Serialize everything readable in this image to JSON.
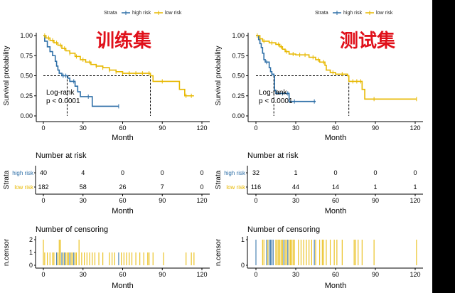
{
  "colors": {
    "high": "#2E6FA7",
    "low": "#E7B800",
    "title": "#E0101A"
  },
  "legend": {
    "title": "Strata",
    "items": [
      "high risk",
      "low risk"
    ]
  },
  "chart_data": [
    {
      "type": "line",
      "panel": "km",
      "title": "训练集",
      "ylabel": "Survival probability",
      "xlabel": "Month",
      "xticks": [
        0,
        30,
        60,
        90,
        120
      ],
      "yticks": [
        "0.00",
        "0.25",
        "0.50",
        "0.75",
        "1.00"
      ],
      "xlim": [
        0,
        120
      ],
      "ylim": [
        0,
        1
      ],
      "annotation": [
        "Log-rank",
        "p < 0.0001"
      ],
      "medians": [
        18,
        81
      ],
      "series": [
        {
          "name": "high risk",
          "steps": [
            [
              0,
              1
            ],
            [
              1,
              0.93
            ],
            [
              3,
              0.86
            ],
            [
              5,
              0.8
            ],
            [
              7,
              0.75
            ],
            [
              9,
              0.68
            ],
            [
              10,
              0.62
            ],
            [
              11,
              0.57
            ],
            [
              12,
              0.53
            ],
            [
              14,
              0.5
            ],
            [
              18.5,
              0.47
            ],
            [
              20,
              0.43
            ],
            [
              24,
              0.37
            ],
            [
              26,
              0.3
            ],
            [
              28,
              0.24
            ],
            [
              37,
              0.12
            ],
            [
              57,
              0.12
            ]
          ],
          "censor": [
            15,
            17,
            23,
            34,
            57
          ]
        },
        {
          "name": "low risk",
          "steps": [
            [
              0,
              1
            ],
            [
              2,
              0.97
            ],
            [
              5,
              0.94
            ],
            [
              8,
              0.91
            ],
            [
              11,
              0.88
            ],
            [
              14,
              0.84
            ],
            [
              17,
              0.81
            ],
            [
              20,
              0.78
            ],
            [
              24,
              0.74
            ],
            [
              28,
              0.7
            ],
            [
              32,
              0.67
            ],
            [
              36,
              0.64
            ],
            [
              40,
              0.62
            ],
            [
              45,
              0.6
            ],
            [
              50,
              0.57
            ],
            [
              55,
              0.55
            ],
            [
              60,
              0.53
            ],
            [
              81,
              0.5
            ],
            [
              83,
              0.43
            ],
            [
              103,
              0.33
            ],
            [
              107,
              0.25
            ],
            [
              114,
              0.25
            ]
          ],
          "censor": [
            1,
            4,
            7,
            10,
            13,
            16,
            20,
            25,
            30,
            35,
            40,
            45,
            50,
            55,
            60,
            65,
            70,
            75,
            80,
            90,
            108,
            112
          ]
        }
      ],
      "risk_table": {
        "title": "Number at risk",
        "ylabel": "Strata",
        "xlabel": "Month",
        "rows": [
          {
            "label": "high risk",
            "values": [
              "40",
              "4",
              "0",
              "0",
              "0"
            ]
          },
          {
            "label": "low risk",
            "values": [
              "182",
              "58",
              "26",
              "7",
              "0"
            ]
          }
        ]
      },
      "censoring": {
        "title": "Number of censoring",
        "ylabel": "n.censor",
        "xlabel": "Month",
        "yticks": [
          "0",
          "1",
          "2"
        ],
        "ymax": 2,
        "bars": [
          [
            0,
            2,
            "low"
          ],
          [
            1,
            1,
            "low"
          ],
          [
            3,
            1,
            "low"
          ],
          [
            5,
            1,
            "low"
          ],
          [
            7,
            1,
            "low"
          ],
          [
            8,
            1,
            "low"
          ],
          [
            10,
            1,
            "high"
          ],
          [
            11,
            1,
            "low"
          ],
          [
            12,
            2,
            "low"
          ],
          [
            13,
            2,
            "low"
          ],
          [
            14,
            1,
            "high"
          ],
          [
            15,
            1,
            "low"
          ],
          [
            16,
            1,
            "high"
          ],
          [
            17,
            1,
            "low"
          ],
          [
            18,
            1,
            "low"
          ],
          [
            19,
            1,
            "low"
          ],
          [
            20,
            1,
            "high"
          ],
          [
            21,
            1,
            "low"
          ],
          [
            22,
            1,
            "low"
          ],
          [
            23,
            1,
            "high"
          ],
          [
            24,
            1,
            "low"
          ],
          [
            25,
            1,
            "low"
          ],
          [
            27,
            2,
            "low"
          ],
          [
            29,
            1,
            "low"
          ],
          [
            31,
            1,
            "low"
          ],
          [
            33,
            1,
            "low"
          ],
          [
            35,
            1,
            "low"
          ],
          [
            37,
            1,
            "low"
          ],
          [
            39,
            1,
            "low"
          ],
          [
            42,
            1,
            "low"
          ],
          [
            45,
            1,
            "low"
          ],
          [
            50,
            1,
            "low"
          ],
          [
            52,
            1,
            "low"
          ],
          [
            54,
            1,
            "low"
          ],
          [
            57,
            1,
            "high"
          ],
          [
            59,
            1,
            "low"
          ],
          [
            61,
            1,
            "low"
          ],
          [
            63,
            1,
            "low"
          ],
          [
            65,
            1,
            "low"
          ],
          [
            67,
            1,
            "low"
          ],
          [
            70,
            1,
            "low"
          ],
          [
            73,
            1,
            "low"
          ],
          [
            76,
            1,
            "low"
          ],
          [
            79,
            1,
            "low"
          ],
          [
            80,
            1,
            "low"
          ],
          [
            83,
            1,
            "low"
          ],
          [
            91,
            1,
            "low"
          ],
          [
            108,
            1,
            "low"
          ],
          [
            112,
            1,
            "low"
          ],
          [
            114,
            1,
            "low"
          ]
        ]
      }
    },
    {
      "type": "line",
      "panel": "km",
      "title": "测试集",
      "ylabel": "Survival probability",
      "xlabel": "Month",
      "xticks": [
        0,
        30,
        60,
        90,
        120
      ],
      "yticks": [
        "0.00",
        "0.25",
        "0.50",
        "0.75",
        "1.00"
      ],
      "xlim": [
        0,
        120
      ],
      "ylim": [
        0,
        1
      ],
      "annotation": [
        "Log-rank",
        "p < 0.0001"
      ],
      "medians": [
        13.5,
        70
      ],
      "series": [
        {
          "name": "high risk",
          "steps": [
            [
              0,
              1
            ],
            [
              2,
              0.95
            ],
            [
              3,
              0.9
            ],
            [
              4,
              0.85
            ],
            [
              5,
              0.78
            ],
            [
              6,
              0.7
            ],
            [
              7,
              0.67
            ],
            [
              10,
              0.6
            ],
            [
              11,
              0.55
            ],
            [
              12,
              0.52
            ],
            [
              13.5,
              0.5
            ],
            [
              14,
              0.32
            ],
            [
              15,
              0.28
            ],
            [
              25,
              0.18
            ],
            [
              45,
              0.18
            ]
          ],
          "censor": [
            8,
            12,
            20,
            24,
            29,
            44
          ]
        },
        {
          "name": "low risk",
          "steps": [
            [
              0,
              1
            ],
            [
              3,
              0.96
            ],
            [
              5,
              0.93
            ],
            [
              10,
              0.91
            ],
            [
              15,
              0.89
            ],
            [
              18,
              0.86
            ],
            [
              20,
              0.83
            ],
            [
              22,
              0.8
            ],
            [
              25,
              0.77
            ],
            [
              30,
              0.76
            ],
            [
              40,
              0.73
            ],
            [
              45,
              0.7
            ],
            [
              48,
              0.67
            ],
            [
              52,
              0.63
            ],
            [
              53,
              0.57
            ],
            [
              56,
              0.54
            ],
            [
              60,
              0.52
            ],
            [
              69,
              0.5
            ],
            [
              70,
              0.43
            ],
            [
              80,
              0.33
            ],
            [
              82,
              0.21
            ],
            [
              121,
              0.21
            ]
          ],
          "censor": [
            1,
            6,
            12,
            17,
            19,
            23,
            28,
            33,
            37,
            43,
            47,
            51,
            58,
            65,
            73,
            76,
            79,
            89,
            121
          ]
        }
      ],
      "risk_table": {
        "title": "Number at risk",
        "ylabel": "Strata",
        "xlabel": "Month",
        "rows": [
          {
            "label": "high risk",
            "values": [
              "32",
              "1",
              "0",
              "0",
              "0"
            ]
          },
          {
            "label": "low risk",
            "values": [
              "116",
              "44",
              "14",
              "1",
              "1"
            ]
          }
        ]
      },
      "censoring": {
        "title": "Number of censoring",
        "ylabel": "n.censor",
        "xlabel": "Month",
        "yticks": [
          "0",
          "1"
        ],
        "ymax": 1,
        "bars": [
          [
            0,
            1,
            "high"
          ],
          [
            5,
            1,
            "low"
          ],
          [
            6,
            1,
            "low"
          ],
          [
            8,
            1,
            "high"
          ],
          [
            9,
            1,
            "low"
          ],
          [
            10,
            1,
            "high"
          ],
          [
            11,
            1,
            "high"
          ],
          [
            12,
            1,
            "high"
          ],
          [
            13,
            1,
            "high"
          ],
          [
            15,
            1,
            "low"
          ],
          [
            16,
            1,
            "low"
          ],
          [
            17,
            1,
            "low"
          ],
          [
            18,
            1,
            "low"
          ],
          [
            19,
            1,
            "low"
          ],
          [
            20,
            1,
            "low"
          ],
          [
            21,
            1,
            "high"
          ],
          [
            22,
            1,
            "low"
          ],
          [
            23,
            1,
            "low"
          ],
          [
            24,
            1,
            "high"
          ],
          [
            25,
            1,
            "low"
          ],
          [
            26,
            1,
            "low"
          ],
          [
            27,
            1,
            "low"
          ],
          [
            28,
            1,
            "low"
          ],
          [
            29,
            1,
            "low"
          ],
          [
            32,
            1,
            "low"
          ],
          [
            34,
            1,
            "low"
          ],
          [
            36,
            1,
            "low"
          ],
          [
            38,
            1,
            "low"
          ],
          [
            40,
            1,
            "low"
          ],
          [
            42,
            1,
            "low"
          ],
          [
            44,
            1,
            "high"
          ],
          [
            45,
            1,
            "low"
          ],
          [
            48,
            1,
            "low"
          ],
          [
            50,
            1,
            "low"
          ],
          [
            51,
            1,
            "low"
          ],
          [
            53,
            1,
            "low"
          ],
          [
            56,
            1,
            "low"
          ],
          [
            59,
            1,
            "low"
          ],
          [
            61,
            1,
            "low"
          ],
          [
            65,
            1,
            "low"
          ],
          [
            74,
            1,
            "low"
          ],
          [
            75,
            1,
            "low"
          ],
          [
            77,
            1,
            "low"
          ],
          [
            80,
            1,
            "low"
          ],
          [
            89,
            1,
            "low"
          ],
          [
            121,
            1,
            "low"
          ]
        ]
      }
    }
  ]
}
